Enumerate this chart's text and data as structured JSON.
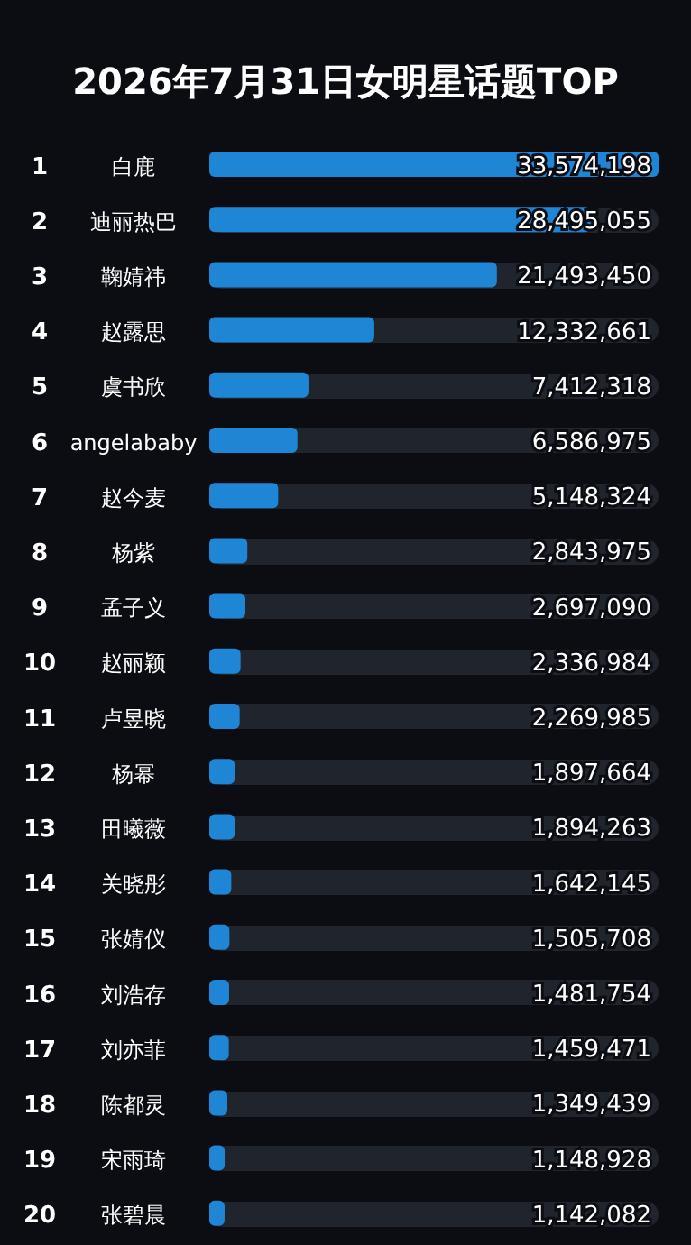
{
  "chart_data": {
    "type": "bar",
    "orientation": "horizontal",
    "title": "2026年7月31日女明星话题TOP",
    "categories": [
      "白鹿",
      "迪丽热巴",
      "鞠婧祎",
      "赵露思",
      "虞书欣",
      "angelababy",
      "赵今麦",
      "杨紫",
      "孟子义",
      "赵丽颖",
      "卢昱晓",
      "杨幂",
      "田曦薇",
      "关晓彤",
      "张婧仪",
      "刘浩存",
      "刘亦菲",
      "陈都灵",
      "宋雨琦",
      "张碧晨"
    ],
    "values": [
      33574198,
      28495055,
      21493450,
      12332661,
      7412318,
      6586975,
      5148324,
      2843975,
      2697090,
      2336984,
      2269985,
      1897664,
      1894263,
      1642145,
      1505708,
      1481754,
      1459471,
      1349439,
      1148928,
      1142082
    ],
    "value_labels": [
      "33,574,198",
      "28,495,055",
      "21,493,450",
      "12,332,661",
      "7,412,318",
      "6,586,975",
      "5,148,324",
      "2,843,975",
      "2,697,090",
      "2,336,984",
      "2,269,985",
      "1,897,664",
      "1,894,263",
      "1,642,145",
      "1,505,708",
      "1,481,754",
      "1,459,471",
      "1,349,439",
      "1,148,928",
      "1,142,082"
    ],
    "annotations": [
      "1",
      "2",
      "3",
      "4",
      "5",
      "6",
      "7",
      "8",
      "9",
      "10",
      "11",
      "12",
      "13",
      "14",
      "15",
      "16",
      "17",
      "18",
      "19",
      "20"
    ],
    "color": "#1f86d6"
  }
}
